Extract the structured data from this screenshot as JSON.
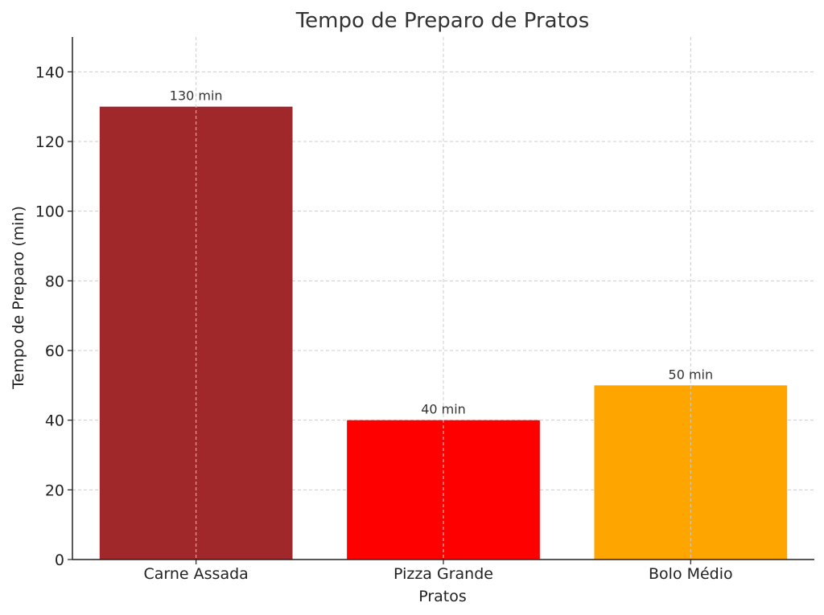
{
  "chart_data": {
    "type": "bar",
    "title": "Tempo de Preparo de Pratos",
    "xlabel": "Pratos",
    "ylabel": "Tempo de Preparo (min)",
    "categories": [
      "Carne Assada",
      "Pizza Grande",
      "Bolo Médio"
    ],
    "values": [
      130,
      40,
      50
    ],
    "data_labels": [
      "130 min",
      "40 min",
      "50 min"
    ],
    "colors": [
      "#a0282b",
      "#ff0000",
      "#ffa500"
    ],
    "ylim": [
      0,
      150
    ],
    "yticks": [
      0,
      20,
      40,
      60,
      80,
      100,
      120,
      140
    ],
    "grid": true
  }
}
